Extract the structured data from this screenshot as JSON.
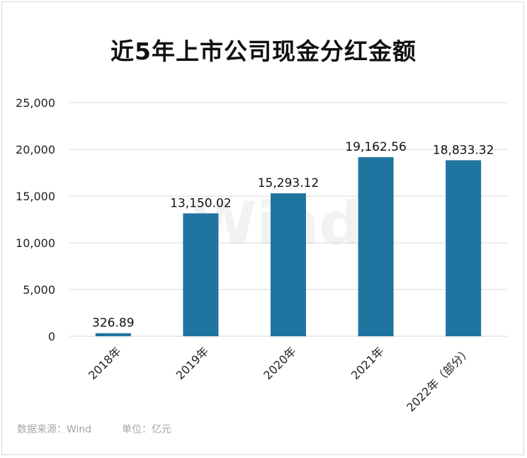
{
  "chart_data": {
    "type": "bar",
    "title": "近5年上市公司现金分红金额",
    "categories": [
      "2018年",
      "2019年",
      "2020年",
      "2021年",
      "2022年（部分）"
    ],
    "values": [
      326.89,
      13150.02,
      15293.12,
      19162.56,
      18833.32
    ],
    "value_labels": [
      "326.89",
      "13,150.02",
      "15,293.12",
      "19,162.56",
      "18,833.32"
    ],
    "y_ticks": [
      "0",
      "5,000",
      "10,000",
      "15,000",
      "20,000",
      "25,000"
    ],
    "y_tick_values": [
      0,
      5000,
      10000,
      15000,
      20000,
      25000
    ],
    "ylim": [
      0,
      25000
    ],
    "grid": true,
    "bar_color": "#2074a0"
  },
  "watermark": "Wind",
  "footer": {
    "source": "数据来源：Wind",
    "unit": "单位：亿元"
  }
}
